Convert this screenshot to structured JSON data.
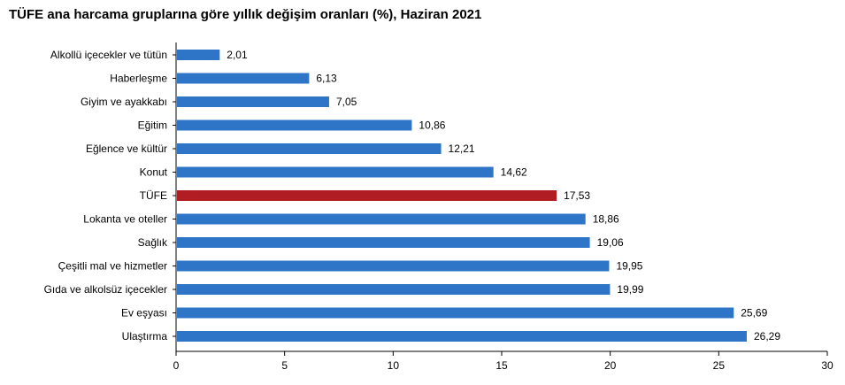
{
  "chart_data": {
    "type": "bar",
    "orientation": "horizontal",
    "title": "TÜFE ana harcama gruplarına göre yıllık değişim oranları (%), Haziran 2021",
    "categories": [
      "Alkollü içecekler ve tütün",
      "Haberleşme",
      "Giyim ve ayakkabı",
      "Eğitim",
      "Eğlence ve kültür",
      "Konut",
      "TÜFE",
      "Lokanta ve oteller",
      "Sağlık",
      "Çeşitli mal ve hizmetler",
      "Gıda ve alkolsüz içecekler",
      "Ev eşyası",
      "Ulaştırma"
    ],
    "values": [
      2.01,
      6.13,
      7.05,
      10.86,
      12.21,
      14.62,
      17.53,
      18.86,
      19.06,
      19.95,
      19.99,
      25.69,
      26.29
    ],
    "value_labels": [
      "2,01",
      "6,13",
      "7,05",
      "10,86",
      "12,21",
      "14,62",
      "17,53",
      "18,86",
      "19,06",
      "19,95",
      "19,99",
      "25,69",
      "26,29"
    ],
    "highlight_category": "TÜFE",
    "xlim": [
      0,
      30
    ],
    "xticks": [
      0,
      5,
      10,
      15,
      20,
      25,
      30
    ],
    "xlabel": "",
    "ylabel": "",
    "grid": false,
    "legend": "none",
    "colors": {
      "bar": "#2e75c8",
      "highlight": "#b01e23",
      "axis": "#000000"
    }
  }
}
